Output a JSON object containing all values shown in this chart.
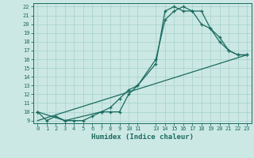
{
  "title": "",
  "xlabel": "Humidex (Indice chaleur)",
  "bg_color": "#cce8e4",
  "grid_color": "#aad4ce",
  "line_color": "#1a6b60",
  "line1_x": [
    0,
    1,
    2,
    3,
    4,
    5,
    6,
    7,
    8,
    9,
    10,
    11,
    13,
    14,
    15,
    16,
    17,
    18,
    19,
    20,
    21,
    22,
    23
  ],
  "line1_y": [
    10,
    9,
    9.5,
    9,
    9,
    9,
    9.5,
    10,
    10,
    10,
    12,
    13,
    16,
    20.5,
    21.5,
    22,
    21.5,
    21.5,
    19.5,
    18.5,
    17,
    16.5,
    16.5
  ],
  "line2_x": [
    0,
    3,
    7,
    8,
    9,
    10,
    11,
    13,
    14,
    15,
    16,
    17,
    18,
    19,
    20,
    21,
    22,
    23
  ],
  "line2_y": [
    10,
    9,
    10,
    10.5,
    11.5,
    12.5,
    13,
    15.5,
    21.5,
    22,
    21.5,
    21.5,
    20,
    19.5,
    18,
    17,
    16.5,
    16.5
  ],
  "line3_x": [
    0,
    23
  ],
  "line3_y": [
    9,
    16.5
  ],
  "xmin": -0.5,
  "xmax": 23.5,
  "ymin": 8.7,
  "ymax": 22.4,
  "xticks": [
    0,
    1,
    2,
    3,
    4,
    5,
    6,
    7,
    8,
    9,
    10,
    11,
    13,
    14,
    15,
    16,
    17,
    18,
    19,
    20,
    21,
    22,
    23
  ],
  "yticks": [
    9,
    10,
    11,
    12,
    13,
    14,
    15,
    16,
    17,
    18,
    19,
    20,
    21,
    22
  ],
  "tick_fontsize": 5.0,
  "xlabel_fontsize": 6.5
}
